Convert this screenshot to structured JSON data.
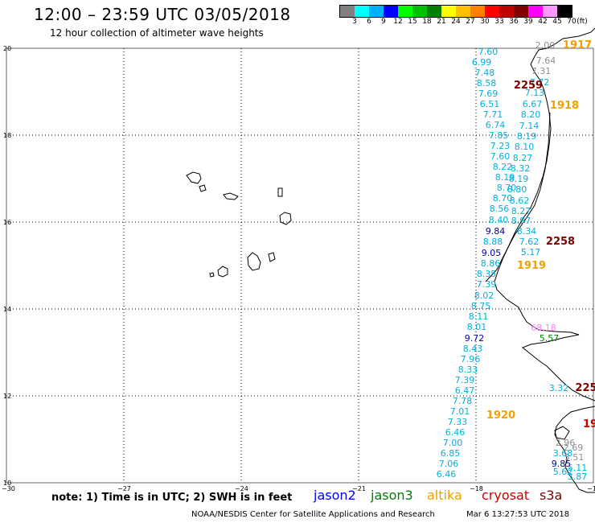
{
  "header": {
    "title": "12:00 – 23:59 UTC 03/05/2018",
    "subtitle": "12 hour collection of altimeter wave heights"
  },
  "colorbar": {
    "unit": "(ft)",
    "ticks": [
      "3",
      "6",
      "9",
      "12",
      "15",
      "18",
      "21",
      "24",
      "27",
      "30",
      "33",
      "36",
      "39",
      "42",
      "45",
      "70"
    ],
    "colors": [
      "#808080",
      "#00ffff",
      "#00b0ff",
      "#0000ff",
      "#00ff00",
      "#00c000",
      "#008000",
      "#ffff00",
      "#ffc000",
      "#ff8000",
      "#ff0000",
      "#c00000",
      "#800000",
      "#ff00ff",
      "#ff99ff",
      "#000000"
    ]
  },
  "map": {
    "lat_range": [
      10,
      20
    ],
    "lon_range": [
      -30,
      -15
    ],
    "lat_labels": [
      "20",
      "18",
      "16",
      "14",
      "12",
      "10"
    ],
    "lon_labels": [
      "−30",
      "−27",
      "−24",
      "−21",
      "−18",
      "−15"
    ],
    "track_color": "#00b0e0",
    "measurements_west": [
      "7.60",
      "6.99",
      "7.48",
      "8.58",
      "7.69",
      "6.51",
      "7.71",
      "6.74",
      "7.85",
      "7.23",
      "7.60",
      "8.22",
      "8.19",
      "8.70",
      "8.70",
      "8.56",
      "8.40",
      "9.84",
      "8.88",
      "9.05",
      "8.86",
      "8.35",
      "7.39",
      "8.02",
      "8.75",
      "8.11",
      "8.01",
      "9.72",
      "8.43",
      "7.96",
      "8.33",
      "7.39",
      "6.47",
      "7.78",
      "7.01",
      "7.33",
      "6.46",
      "7.00",
      "6.85",
      "7.06",
      "6.46"
    ],
    "measurements_east": [
      "2.00",
      "7.64",
      "7.31",
      "7.72",
      "7.13",
      "6.67",
      "8.20",
      "7.14",
      "8.19",
      "8.10",
      "8.27",
      "8.32",
      "8.19",
      "8.80",
      "8.62",
      "8.27",
      "8.97",
      "8.34",
      "7.62",
      "5.17",
      "68.18",
      "5.57",
      "3.32",
      "2.96",
      "2.69",
      "3.51",
      "3.68",
      "9.85",
      "5.11",
      "5.62",
      "3.87"
    ],
    "time_labels": [
      {
        "text": "1917",
        "color": "#f0a000"
      },
      {
        "text": "2259",
        "color": "#800000"
      },
      {
        "text": "1918",
        "color": "#f0a000"
      },
      {
        "text": "2258",
        "color": "#800000"
      },
      {
        "text": "1919",
        "color": "#f0a000"
      },
      {
        "text": "1920",
        "color": "#f0a000"
      },
      {
        "text": "225",
        "color": "#800000"
      },
      {
        "text": "19",
        "color": "#d00000"
      }
    ]
  },
  "footer": {
    "note": "note:  1) Time is in UTC;  2) SWH is in feet",
    "satellites": [
      {
        "name": "jason2",
        "color": "#0000ff"
      },
      {
        "name": "jason3",
        "color": "#008000"
      },
      {
        "name": "altika",
        "color": "#f0a000"
      },
      {
        "name": "cryosat",
        "color": "#d00000"
      },
      {
        "name": "s3a",
        "color": "#800000"
      }
    ],
    "credit": "NOAA/NESDIS Center for Satellite Applications and Research",
    "timestamp": "Mar  6 13:27:53 UTC 2018"
  }
}
